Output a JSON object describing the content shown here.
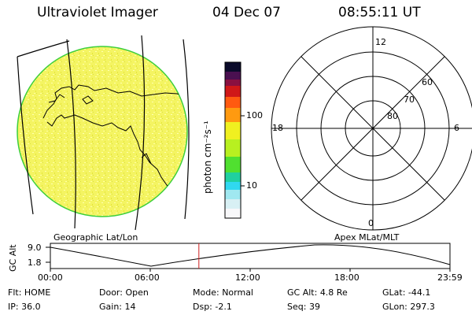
{
  "header": {
    "title": "Ultraviolet Imager",
    "date": "04 Dec 07",
    "time": "08:55:11 UT"
  },
  "colorbar": {
    "label": "photon cm⁻²s⁻¹",
    "ticks": [
      "100",
      "10"
    ]
  },
  "polar_plot": {
    "mlt_labels": [
      "12",
      "18",
      "6",
      "0"
    ],
    "lat_labels": [
      "60",
      "70",
      "80"
    ]
  },
  "panel_labels": {
    "left": "Geographic Lat/Lon",
    "right": "Apex MLat/MLT"
  },
  "altitude_plot": {
    "ylabel": "GC Alt",
    "yticks": [
      "9.0",
      "1.8"
    ],
    "xticks": [
      "00:00",
      "06:00",
      "12:00",
      "18:00",
      "23:59"
    ],
    "marker_time_hours": 8.92
  },
  "info": {
    "row1": [
      {
        "label": "Flt:",
        "value": "HOME"
      },
      {
        "label": "Door:",
        "value": "Open"
      },
      {
        "label": "Mode:",
        "value": "Normal"
      },
      {
        "label": "GC Alt:",
        "value": "4.8 Re"
      },
      {
        "label": "GLat:",
        "value": "-44.1"
      }
    ],
    "row2": [
      {
        "label": "IP:",
        "value": "36.0"
      },
      {
        "label": "Gain:",
        "value": "14"
      },
      {
        "label": "Dsp:",
        "value": "-2.1"
      },
      {
        "label": "Seq:",
        "value": "39"
      },
      {
        "label": "GLon:",
        "value": "297.3"
      }
    ]
  },
  "colors": {
    "disk_fill": "#f2f25a",
    "disk_edge": "#3ccf3c",
    "marker": "#cc2020"
  }
}
